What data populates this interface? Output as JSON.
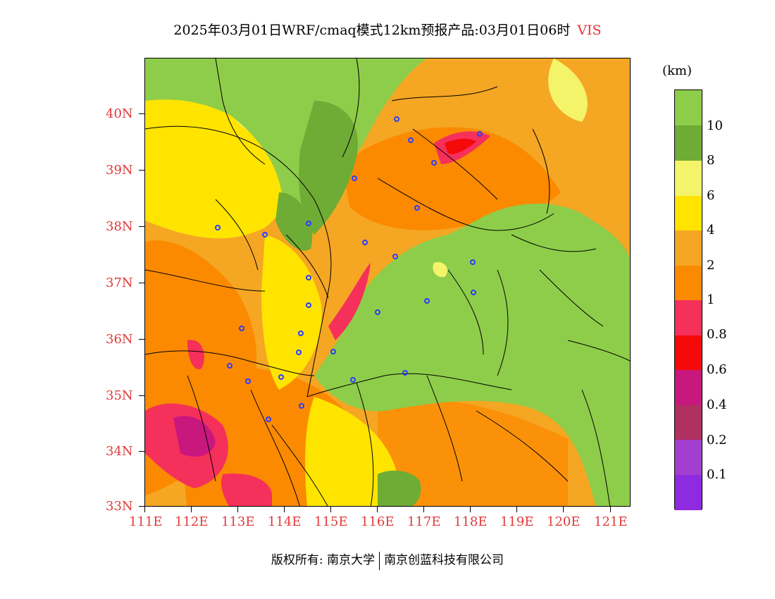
{
  "title": {
    "main": "2025年03月01日WRF/cmaq模式12km预报产品:03月01日06时",
    "variable": "VIS"
  },
  "axes": {
    "lat_labels": [
      "40N",
      "39N",
      "38N",
      "37N",
      "36N",
      "35N",
      "34N",
      "33N"
    ],
    "lon_labels": [
      "111E",
      "112E",
      "113E",
      "114E",
      "115E",
      "116E",
      "117E",
      "118E",
      "119E",
      "120E",
      "121E"
    ]
  },
  "legend": {
    "unit": "(km)",
    "colors": [
      "#8e2be0",
      "#a23fd0",
      "#b03060",
      "#c8187e",
      "#f50a0a",
      "#f5305a",
      "#fb8a00",
      "#f5a623",
      "#ffe400",
      "#f4f46a",
      "#6fac35",
      "#8ecd4a"
    ],
    "labels": [
      "0.1",
      "0.2",
      "0.4",
      "0.6",
      "0.8",
      "1",
      "2",
      "4",
      "6",
      "8",
      "10"
    ]
  },
  "footer": {
    "copyright": "版权所有: 南京大学",
    "company": "南京创蓝科技有限公司"
  }
}
